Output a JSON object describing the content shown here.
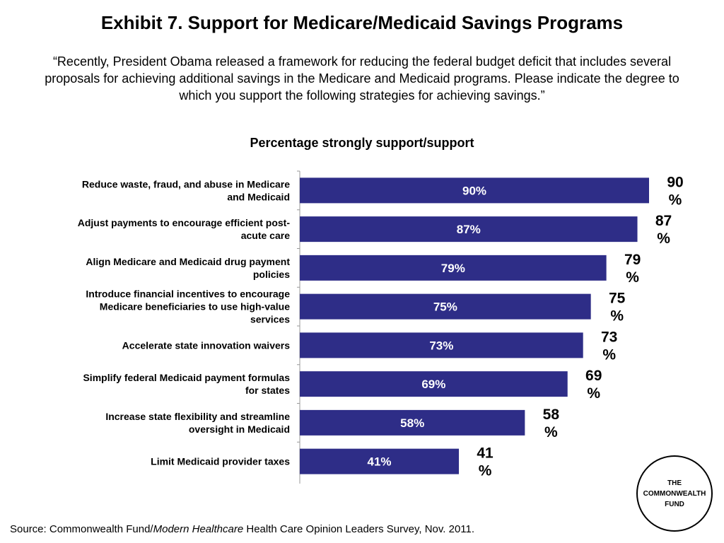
{
  "title": "Exhibit 7. Support for Medicare/Medicaid Savings Programs",
  "question": "“Recently, President Obama released a framework for reducing the federal budget deficit that includes several proposals for achieving additional savings in the Medicare and Medicaid programs. Please indicate the degree to which you support the following strategies for achieving savings.”",
  "logo_text": "THE\nCOMMONWEALTH\nFUND",
  "source": {
    "prefix": "Source: Commonwealth Fund/",
    "italic": "Modern Healthcare",
    "suffix": " Health Care Opinion Leaders Survey, Nov. 2011."
  },
  "colors": {
    "bar": "#2e2d87",
    "bar_text": "#ffffff",
    "axis": "#999999"
  },
  "chart_data": {
    "type": "bar",
    "orientation": "horizontal",
    "title": "Percentage strongly support/support",
    "categories": [
      [
        "Reduce waste, fraud, and abuse in Medicare",
        "and Medicaid"
      ],
      [
        "Adjust payments to encourage efficient post-",
        "acute care"
      ],
      [
        "Align Medicare and Medicaid drug payment",
        "policies"
      ],
      [
        "Introduce financial incentives to encourage",
        "Medicare beneficiaries to use high-value",
        "services"
      ],
      [
        "Accelerate state innovation waivers"
      ],
      [
        "Simplify federal Medicaid payment formulas",
        "for states"
      ],
      [
        "Increase state flexibility and streamline",
        "oversight in Medicaid"
      ],
      [
        "Limit Medicaid provider taxes"
      ]
    ],
    "values": [
      90,
      87,
      79,
      75,
      73,
      69,
      58,
      41
    ],
    "value_labels": [
      "90%",
      "87%",
      "79%",
      "75%",
      "73%",
      "69%",
      "58%",
      "41%"
    ],
    "outside_labels": [
      [
        "90",
        "%"
      ],
      [
        "87",
        "%"
      ],
      [
        "79",
        "%"
      ],
      [
        "75",
        "%"
      ],
      [
        "73",
        "%"
      ],
      [
        "69",
        "%"
      ],
      [
        "58",
        "%"
      ],
      [
        "41",
        "%"
      ]
    ],
    "xlim": [
      0,
      90
    ],
    "grid": false,
    "legend": "none"
  }
}
